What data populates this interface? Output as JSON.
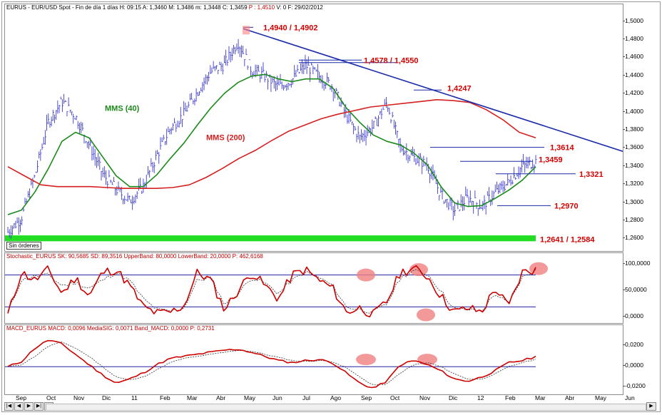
{
  "price_panel": {
    "header": "EURUS - EUR/USD Spot - Fin de día 1 días  H: 09:15  A: 1,3460  M: 1,3486  m: 1,3448  C: 1,3459",
    "header_p": "P : 1,4510",
    "header_tail": "V: 0  F: 29/02/2012",
    "status_label": "Sin órdenes",
    "annotations": {
      "high_label": "1,4940 / 1,4902",
      "level2_label": "1,4578 / 1,4550",
      "level3_label": "1,4247",
      "level4_label": "1,3614",
      "level5_label": "1,3459",
      "level6_label": "1,3321",
      "level7_label": "1,2970",
      "low_label": "1,2641 / 1,2584",
      "mms40_label": "MMS (40)",
      "mms200_label": "MMS (200)"
    },
    "y_ticks": [
      "1,5000",
      "1,4800",
      "1,4600",
      "1,4400",
      "1,4200",
      "1,4000",
      "1,3800",
      "1,3600",
      "1,3400",
      "1,3200",
      "1,3000",
      "1,2800",
      "1,2600"
    ]
  },
  "stoch_panel": {
    "header": "Stochastic_EURUS  SK: 90,5685  SD: 89,3516  UpperBand: 80,0000  LowerBand: 20,0000  P: 462,6168",
    "y_ticks": [
      "100,0000",
      "50,0000",
      "0,0000"
    ]
  },
  "macd_panel": {
    "header": "MACD_EURUS  MACD: 0,0096  MediaSIG: 0,0071  Band_MACD: 0,0000  P: 0,2731",
    "y_ticks": [
      "0,0200",
      "0,0000",
      "-0,0200"
    ]
  },
  "x_ticks": [
    "Sep",
    "Oct",
    "Nov",
    "Dic",
    "11",
    "Feb",
    "Mar",
    "Abr",
    "May",
    "Jun",
    "Jul",
    "Ago",
    "Sep",
    "Oct",
    "Nov",
    "Dic",
    "12",
    "Feb",
    "Mar",
    "Abr",
    "May",
    "Jun"
  ],
  "nav": [
    "|◀",
    "◀",
    "▶",
    "▶|",
    "◀"
  ],
  "colors": {
    "price": "#3b3bd0",
    "mms40": "#1a8a1a",
    "mms200": "#d42020",
    "trendline": "#1a2aa8",
    "support_band": "#22dd22",
    "annotation": "#d40000",
    "stoch_k": "#cc0000",
    "band_line": "#2222aa",
    "highlight": "#f08080"
  },
  "chart_data": [
    {
      "type": "line",
      "title": "EURUS - EUR/USD Spot",
      "x_start": "Sep 2010",
      "x_end": "Feb 2012",
      "ylim": [
        1.25,
        1.51
      ],
      "series": [
        {
          "name": "EURUS",
          "values": [
            1.268,
            1.283,
            1.33,
            1.39,
            1.412,
            1.396,
            1.365,
            1.332,
            1.315,
            1.302,
            1.318,
            1.352,
            1.382,
            1.398,
            1.423,
            1.445,
            1.453,
            1.478,
            1.447,
            1.44,
            1.428,
            1.436,
            1.452,
            1.44,
            1.429,
            1.397,
            1.372,
            1.384,
            1.411,
            1.362,
            1.35,
            1.342,
            1.309,
            1.292,
            1.306,
            1.296,
            1.311,
            1.323,
            1.34,
            1.346
          ]
        },
        {
          "name": "MMS (40)",
          "values": [
            1.287,
            1.292,
            1.312,
            1.338,
            1.368,
            1.378,
            1.372,
            1.351,
            1.33,
            1.318,
            1.318,
            1.331,
            1.349,
            1.366,
            1.386,
            1.405,
            1.421,
            1.433,
            1.44,
            1.442,
            1.437,
            1.434,
            1.437,
            1.437,
            1.427,
            1.405,
            1.389,
            1.375,
            1.368,
            1.364,
            1.355,
            1.342,
            1.318,
            1.3,
            1.296,
            1.297,
            1.305,
            1.314,
            1.325,
            1.34
          ]
        },
        {
          "name": "MMS (200)",
          "values": [
            1.34,
            1.33,
            1.32,
            1.318,
            1.318,
            1.318,
            1.317,
            1.316,
            1.316,
            1.316,
            1.317,
            1.32,
            1.328,
            1.338,
            1.349,
            1.358,
            1.369,
            1.379,
            1.386,
            1.393,
            1.398,
            1.402,
            1.406,
            1.408,
            1.41,
            1.412,
            1.414,
            1.413,
            1.411,
            1.403,
            1.392,
            1.378,
            1.372
          ]
        }
      ],
      "levels": [
        1.494,
        1.4902,
        1.4578,
        1.455,
        1.4247,
        1.3614,
        1.3459,
        1.3321,
        1.297,
        1.2641,
        1.2584
      ]
    },
    {
      "type": "line",
      "title": "Stochastic_EURUS",
      "ylim": [
        -5,
        105
      ],
      "bands": [
        80,
        20
      ],
      "series": [
        {
          "name": "SK",
          "values": [
            5,
            85,
            70,
            90,
            45,
            75,
            40,
            85,
            90,
            60,
            20,
            8,
            10,
            22,
            85,
            70,
            15,
            50,
            85,
            60,
            35,
            80,
            90,
            70,
            55,
            10,
            18,
            5,
            30,
            85,
            92,
            78,
            40,
            10,
            18,
            10,
            55,
            20,
            85,
            90
          ]
        },
        {
          "name": "SD",
          "values": [
            10,
            70,
            78,
            80,
            60,
            65,
            55,
            70,
            85,
            70,
            35,
            15,
            12,
            18,
            70,
            75,
            25,
            45,
            75,
            65,
            45,
            70,
            85,
            75,
            60,
            20,
            15,
            10,
            25,
            75,
            88,
            82,
            50,
            15,
            15,
            12,
            45,
            25,
            75,
            89
          ]
        }
      ]
    },
    {
      "type": "line",
      "title": "MACD_EURUS",
      "ylim": [
        -0.024,
        0.032
      ],
      "series": [
        {
          "name": "MACD",
          "values": [
            0,
            0.005,
            0.018,
            0.026,
            0.022,
            0.012,
            0.002,
            -0.008,
            -0.016,
            -0.012,
            -0.006,
            0.002,
            0.008,
            0.01,
            0.012,
            0.014,
            0.016,
            0.017,
            0.014,
            0.01,
            0.006,
            0.004,
            0.006,
            0.007,
            0.004,
            -0.006,
            -0.016,
            -0.021,
            -0.014,
            0.002,
            0.006,
            0.002,
            -0.004,
            -0.012,
            -0.014,
            -0.01,
            -0.004,
            0.004,
            0.006,
            0.0096
          ]
        },
        {
          "name": "MediaSIG",
          "values": [
            0,
            0.002,
            0.01,
            0.02,
            0.024,
            0.018,
            0.01,
            0,
            -0.01,
            -0.013,
            -0.01,
            -0.003,
            0.004,
            0.008,
            0.01,
            0.012,
            0.014,
            0.016,
            0.015,
            0.012,
            0.009,
            0.006,
            0.005,
            0.006,
            0.005,
            -0.001,
            -0.01,
            -0.018,
            -0.017,
            -0.006,
            0.002,
            0.004,
            0.0,
            -0.007,
            -0.012,
            -0.012,
            -0.007,
            0.0,
            0.004,
            0.0071
          ]
        }
      ]
    }
  ]
}
